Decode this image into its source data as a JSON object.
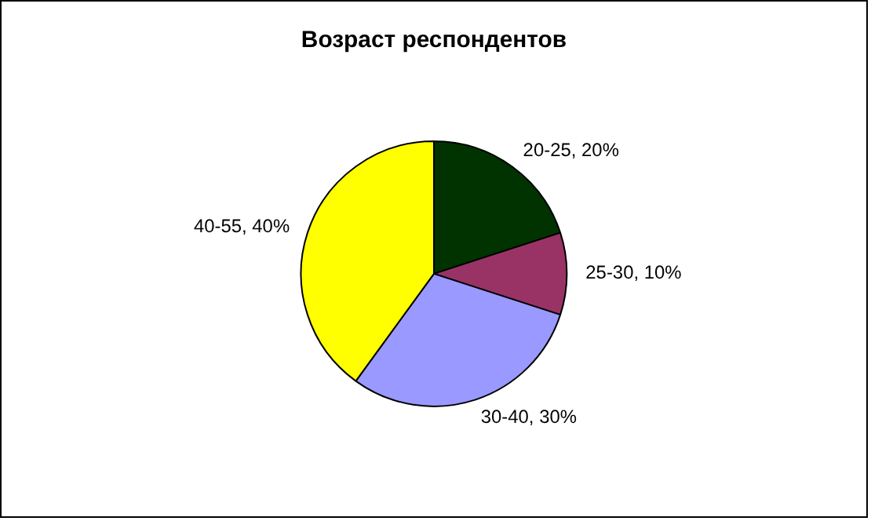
{
  "chart_data": {
    "type": "pie",
    "title": "Возраст респондентов",
    "categories": [
      "20-25",
      "25-30",
      "30-40",
      "40-55"
    ],
    "values": [
      20,
      10,
      30,
      40
    ],
    "value_labels": [
      "20%",
      "10%",
      "30%",
      "40%"
    ],
    "colors": [
      "#003300",
      "#993366",
      "#9999ff",
      "#ffff00"
    ],
    "legend": false
  }
}
